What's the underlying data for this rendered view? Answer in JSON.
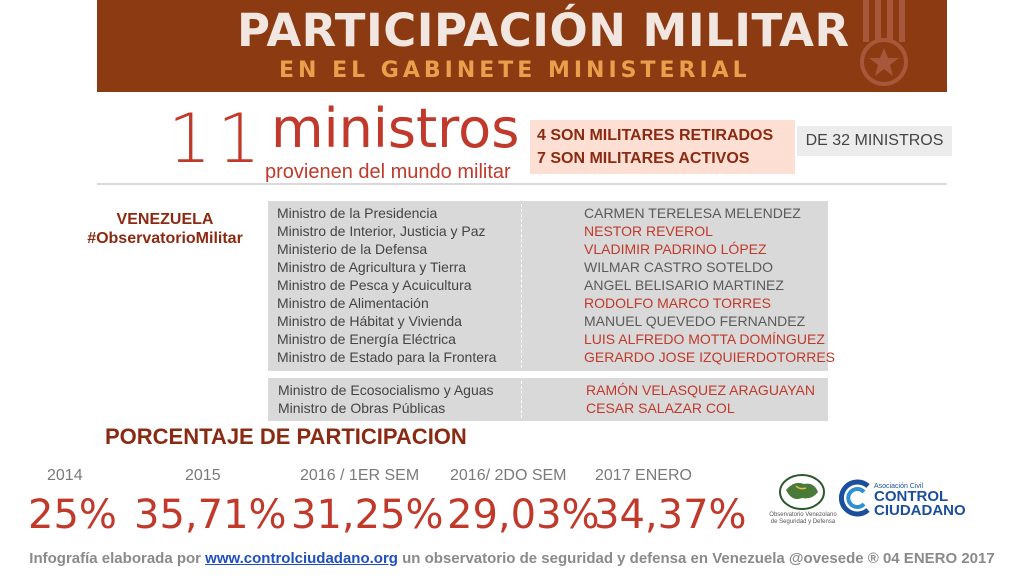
{
  "header": {
    "title": "PARTICIPACIÓN MILITAR",
    "subtitle": "EN EL GABINETE MINISTERIAL"
  },
  "headline": {
    "number": "11",
    "word": "ministros",
    "caption": "provienen del mundo militar",
    "retired_text": "4 SON MILITARES RETIRADOS",
    "active_text": "7 SON MILITARES ACTIVOS",
    "total_text": "DE 32 MINISTROS"
  },
  "region": {
    "line1": "VENEZUELA",
    "line2": "#ObservatorioMilitar"
  },
  "colors": {
    "banner": "#8b3a12",
    "accent_red": "#c0392b",
    "dark_red": "#8b2a12",
    "table_bg": "#d9d9d9",
    "link_blue": "#1f4fbf"
  },
  "ministers_table": [
    {
      "position": "Ministro de la Presidencia",
      "name": "CARMEN TERELESA MELENDEZ",
      "status": "retired"
    },
    {
      "position": "Ministro de Interior, Justicia y Paz",
      "name": "NESTOR REVEROL",
      "status": "active"
    },
    {
      "position": "Ministerio de la Defensa",
      "name": "VLADIMIR PADRINO LÓPEZ",
      "status": "active"
    },
    {
      "position": "Ministro de Agricultura y Tierra",
      "name": "WILMAR CASTRO SOTELDO",
      "status": "retired"
    },
    {
      "position": "Ministro de Pesca y Acuicultura",
      "name": "ANGEL BELISARIO MARTINEZ",
      "status": "retired"
    },
    {
      "position": "Ministro de Alimentación",
      "name": "RODOLFO MARCO TORRES",
      "status": "active"
    },
    {
      "position": "Ministro de Hábitat y Vivienda",
      "name": "MANUEL QUEVEDO FERNANDEZ",
      "status": "retired"
    },
    {
      "position": "Ministro de Energía Eléctrica",
      "name": "LUIS ALFREDO MOTTA DOMÍNGUEZ",
      "status": "active"
    },
    {
      "position": "Ministro de Estado para la Frontera",
      "name": "GERARDO JOSE IZQUIERDOTORRES",
      "status": "active"
    }
  ],
  "ministers_table_2": [
    {
      "position": "Ministro de Ecosocialismo y Aguas",
      "name": "RAMÓN VELASQUEZ ARAGUAYAN",
      "status": "active"
    },
    {
      "position": "Ministro de Obras Públicas",
      "name": "CESAR SALAZAR COL",
      "status": "active"
    }
  ],
  "participation": {
    "title": "PORCENTAJE DE PARTICIPACION",
    "items": [
      {
        "label": "2014",
        "value": "25%"
      },
      {
        "label": "2015",
        "value": "35,71%"
      },
      {
        "label": "2016 / 1ER SEM",
        "value": "31,25%"
      },
      {
        "label": "2016/ 2DO SEM",
        "value": "29,03%"
      },
      {
        "label": "2017 ENERO",
        "value": "34,37%"
      }
    ]
  },
  "logos": {
    "observatorio_line1": "Observatorio Venezolano",
    "observatorio_line2": "de Seguridad y Defensa",
    "cc_small": "Asociación Civil",
    "cc_line1": "CONTROL",
    "cc_line2": "CIUDADANO"
  },
  "footer": {
    "prefix": "Infografía elaborada por ",
    "link": "www.controlciudadano.org",
    "suffix": " un observatorio de seguridad y defensa en Venezuela @ovesede ® 04 ENERO 2017"
  }
}
